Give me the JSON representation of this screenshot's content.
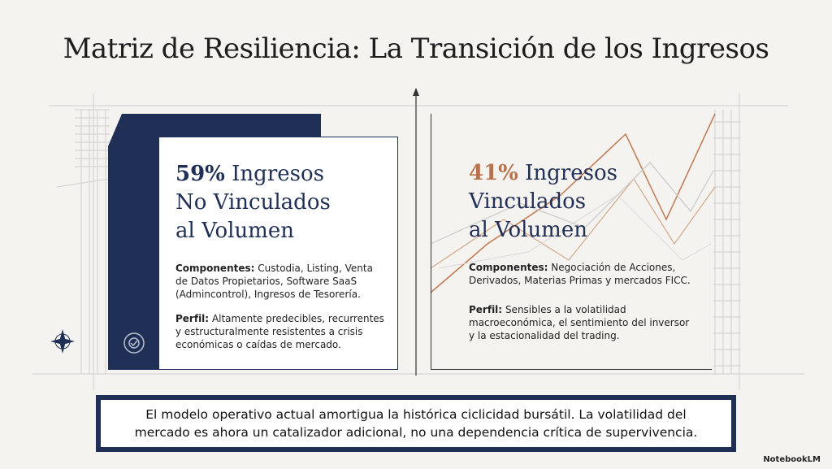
{
  "header": {
    "title": "Matriz de Resiliencia: La Transición de los Ingresos"
  },
  "left_panel": {
    "percent": "59%",
    "heading_lines": [
      "Ingresos",
      "No Vinculados",
      "al Volumen"
    ],
    "components_label": "Componentes:",
    "components_text": "Custodia, Listing, Venta de Datos Propietarios, Software SaaS (Admincontrol), Ingresos de Tesorería.",
    "profile_label": "Perfil:",
    "profile_text": "Altamente predecibles, recurrentes y estructuralmente resistentes a crisis económicas o caídas de mercado."
  },
  "right_panel": {
    "percent": "41%",
    "heading_lines": [
      "Ingresos",
      "Vinculados",
      "al Volumen"
    ],
    "components_label": "Componentes:",
    "components_text": "Negociación de Acciones, Derivados, Materias Primas y mercados FICC.",
    "profile_label": "Perfil:",
    "profile_text": "Sensibles a la volatilidad macroeconómica, el sentimiento del inversor y la estacionalidad del trading."
  },
  "footer": {
    "text": "El modelo operativo actual amortigua la histórica ciclicidad bursátil. La volatilidad del mercado es ahora un catalizador adicional, no una dependencia crítica de supervivencia."
  },
  "brand": {
    "label": "NotebookLM"
  }
}
